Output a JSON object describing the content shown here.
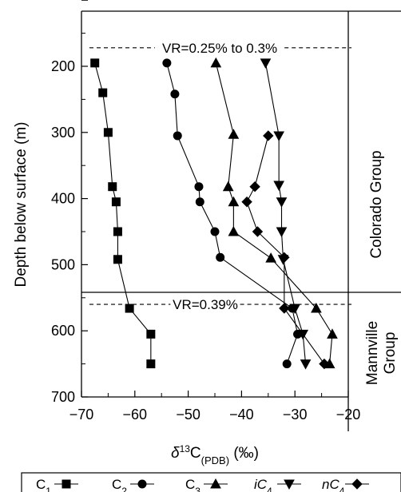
{
  "chart_data": {
    "type": "line",
    "xlabel": "δ13C(PDB) (‰)",
    "ylabel": "Depth below surface (m)",
    "xlim": [
      -70,
      -20
    ],
    "ylim": [
      700,
      100
    ],
    "x_ticks": [
      "−70",
      "−60",
      "−50",
      "−40",
      "−30",
      "−20"
    ],
    "y_ticks": [
      "200",
      "300",
      "400",
      "500",
      "600",
      "700"
    ],
    "annotations": [
      {
        "text": "VR=0.25% to 0.3%",
        "depth": 172
      },
      {
        "text": "VR=0.39%",
        "depth": 560
      }
    ],
    "groups": [
      {
        "label": "Colorado Group",
        "top": 100,
        "bottom": 542
      },
      {
        "label": "Mannville Group",
        "top": 542,
        "bottom": 700
      }
    ],
    "legend_position": "bottom",
    "series": [
      {
        "name": "C1",
        "marker": "square",
        "points": [
          [
            -67.5,
            195
          ],
          [
            -66,
            240
          ],
          [
            -65,
            300
          ],
          [
            -64.2,
            382
          ],
          [
            -63.5,
            405
          ],
          [
            -63.2,
            450
          ],
          [
            -63.2,
            492
          ],
          [
            -61,
            566
          ],
          [
            -57,
            605
          ],
          [
            -57,
            650
          ]
        ]
      },
      {
        "name": "C2",
        "marker": "circle",
        "points": [
          [
            -54,
            195
          ],
          [
            -52.5,
            242
          ],
          [
            -52,
            305
          ],
          [
            -48,
            382
          ],
          [
            -47.8,
            405
          ],
          [
            -45,
            450
          ],
          [
            -44,
            489
          ],
          [
            -30.5,
            566
          ],
          [
            -29.5,
            605
          ],
          [
            -31.5,
            650
          ]
        ]
      },
      {
        "name": "C3",
        "marker": "triangle-up",
        "points": [
          [
            -44.8,
            195
          ],
          [
            -41.5,
            303
          ],
          [
            -42.5,
            382
          ],
          [
            -41.5,
            405
          ],
          [
            -41.5,
            450
          ],
          [
            -34.5,
            490
          ],
          [
            -26,
            566
          ],
          [
            -23,
            605
          ],
          [
            -23.5,
            650
          ]
        ]
      },
      {
        "name": "iC4",
        "marker": "triangle-down",
        "points": [
          [
            -35.5,
            195
          ],
          [
            -33,
            305
          ],
          [
            -33,
            380
          ],
          [
            -32.5,
            405
          ],
          [
            -32.5,
            450
          ],
          [
            -32.2,
            492
          ],
          [
            -30,
            566
          ],
          [
            -28.5,
            605
          ],
          [
            -28,
            650
          ]
        ]
      },
      {
        "name": "nC4",
        "marker": "diamond",
        "points": [
          [
            -35,
            305
          ],
          [
            -37.5,
            382
          ],
          [
            -39,
            405
          ],
          [
            -37,
            450
          ],
          [
            -32,
            489
          ],
          [
            -32,
            566
          ],
          [
            -24.5,
            650
          ]
        ]
      }
    ]
  },
  "legend": [
    {
      "main": "C",
      "sub": "1",
      "italic": false
    },
    {
      "main": "C",
      "sub": "2",
      "italic": false
    },
    {
      "main": "C",
      "sub": "3",
      "italic": false
    },
    {
      "main": "iC",
      "sub": "4",
      "italic": true
    },
    {
      "main": "nC",
      "sub": "4",
      "italic": true
    }
  ]
}
